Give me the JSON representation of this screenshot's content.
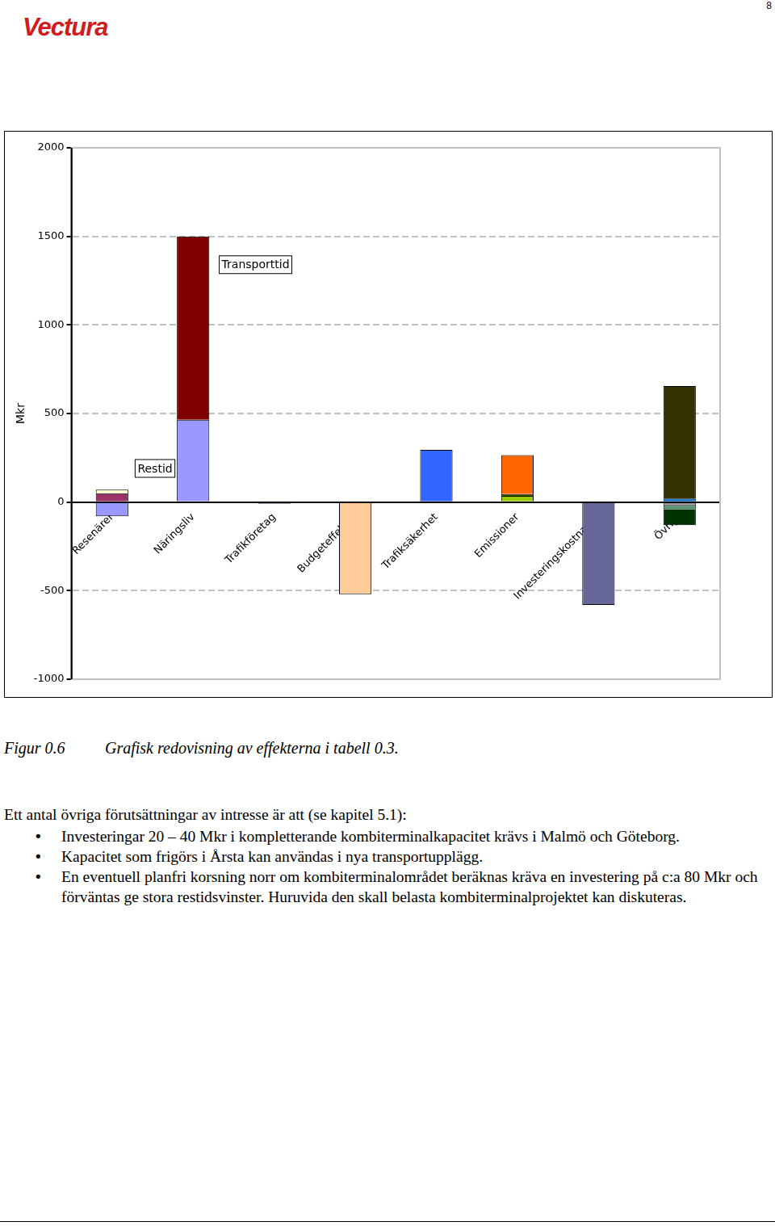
{
  "header": {
    "logo": "Vectura",
    "page_number": "8"
  },
  "chart_data": {
    "type": "bar",
    "stacked": true,
    "grid": true,
    "y_label": "Mkr",
    "categories": [
      "Resenärer",
      "Näringsliv",
      "Trafikföretag",
      "Budgeteffekter",
      "Trafiksäkerhet",
      "Emissioner",
      "Investeringskostnader",
      "Övrigt"
    ],
    "series": [
      {
        "color": "#9999ff",
        "values": [
          -80,
          465,
          null,
          null,
          null,
          null,
          null,
          null
        ]
      },
      {
        "color": "#800000",
        "values": [
          null,
          1035,
          null,
          null,
          null,
          null,
          null,
          null
        ]
      },
      {
        "color": "#993366",
        "values": [
          50,
          null,
          null,
          null,
          null,
          null,
          null,
          null
        ]
      },
      {
        "color": "#ffffcc",
        "values": [
          20,
          null,
          null,
          null,
          null,
          null,
          null,
          null
        ]
      },
      {
        "color": "#cc99ff",
        "values": [
          null,
          null,
          -10,
          null,
          null,
          null,
          null,
          null
        ]
      },
      {
        "color": "#ffcc99",
        "values": [
          null,
          null,
          null,
          -520,
          null,
          null,
          null,
          null
        ]
      },
      {
        "color": "#3366ff",
        "values": [
          null,
          null,
          null,
          null,
          295,
          null,
          null,
          null
        ]
      },
      {
        "color": "#99cc00",
        "values": [
          null,
          null,
          null,
          null,
          null,
          35,
          null,
          null
        ]
      },
      {
        "color": "#336600",
        "values": [
          null,
          null,
          null,
          null,
          null,
          10,
          null,
          null
        ]
      },
      {
        "color": "#ff6600",
        "values": [
          null,
          null,
          null,
          null,
          null,
          220,
          null,
          null
        ]
      },
      {
        "color": "#666699",
        "values": [
          null,
          null,
          null,
          null,
          null,
          null,
          -580,
          null
        ]
      },
      {
        "color": "#0066cc",
        "values": [
          null,
          null,
          null,
          null,
          null,
          null,
          null,
          20
        ]
      },
      {
        "color": "#333300",
        "values": [
          null,
          null,
          null,
          null,
          null,
          null,
          null,
          635
        ]
      },
      {
        "color": "#969696",
        "values": [
          null,
          null,
          null,
          null,
          null,
          null,
          null,
          -25
        ]
      },
      {
        "color": "#339966",
        "values": [
          null,
          null,
          null,
          null,
          null,
          null,
          null,
          -15
        ]
      },
      {
        "color": "#003300",
        "values": [
          null,
          null,
          null,
          null,
          null,
          null,
          null,
          -90
        ]
      }
    ],
    "ylim": [
      -1000,
      2000
    ],
    "yticks": [
      -1000,
      -500,
      0,
      500,
      1000,
      1500,
      2000
    ],
    "annotations": [
      {
        "text": "Transporttid",
        "x": 1.77,
        "y": 1340
      },
      {
        "text": "Restid",
        "x": 0.53,
        "y": 190
      }
    ]
  },
  "caption": {
    "label": "Figur 0.6",
    "text": "Grafisk redovisning av effekterna i tabell 0.3."
  },
  "body": {
    "intro": "Ett antal övriga förutsättningar av intresse är att (se kapitel 5.1):",
    "bullets": [
      "Investeringar 20 – 40 Mkr i kompletterande kombiterminalkapacitet krävs i Malmö och Göteborg.",
      "Kapacitet som frigörs i Årsta kan användas i nya transportupplägg.",
      "En eventuell planfri korsning norr om kombiterminalområdet beräknas kräva en investering på c:a 80 Mkr och förväntas ge stora restidsvinster. Huruvida den skall belasta kombiterminalprojektet kan diskuteras."
    ]
  }
}
